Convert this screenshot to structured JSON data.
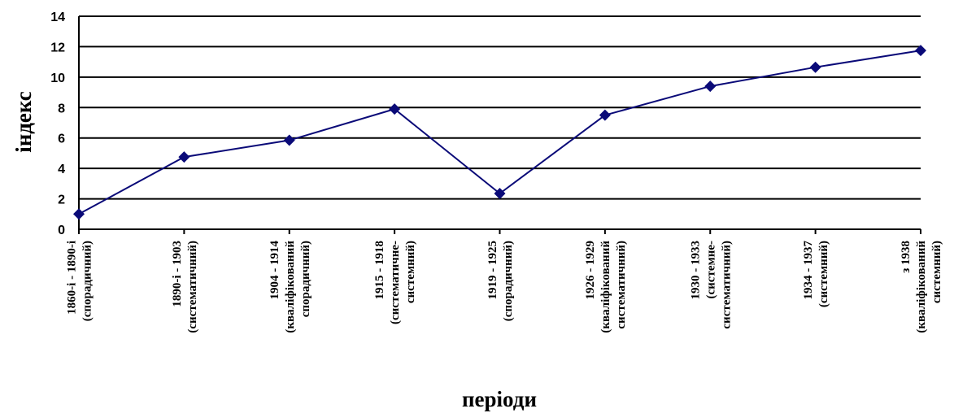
{
  "chart_data": {
    "type": "line",
    "title": "",
    "xlabel": "періоди",
    "ylabel": "індекс",
    "ylim": [
      0,
      14
    ],
    "yticks": [
      "0",
      "2",
      "4",
      "6",
      "8",
      "10",
      "12",
      "14"
    ],
    "grid": true,
    "legend": "none",
    "categories": [
      [
        "1860-і - 1890-і",
        "(спорадичний)"
      ],
      [
        "1890-і - 1903",
        "(систематичний)"
      ],
      [
        "1904 - 1914",
        "(кваліфікований",
        "спорадичний)"
      ],
      [
        "1915 - 1918",
        "(систематичне-",
        "системний)"
      ],
      [
        "1919 - 1925",
        "(спорадичний)"
      ],
      [
        "1926 - 1929",
        "(кваліфікований",
        "систематичний)"
      ],
      [
        "1930 - 1933",
        "(системне-",
        "систематичний)"
      ],
      [
        "1934 - 1937",
        "(системний)"
      ],
      [
        "з 1938",
        "(кваліфікований",
        "системний)"
      ]
    ],
    "series": [
      {
        "values": [
          1.0,
          4.75,
          5.85,
          7.9,
          2.35,
          7.5,
          9.4,
          10.65,
          11.75
        ]
      }
    ],
    "colors": {
      "line": "#0a0a78",
      "grid": "#000000"
    }
  }
}
